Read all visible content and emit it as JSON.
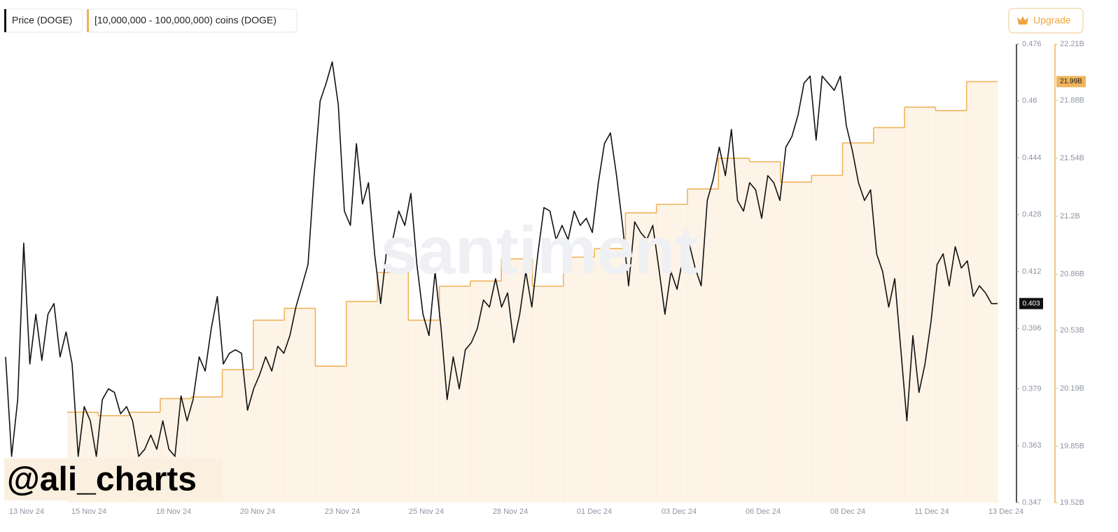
{
  "chart_data": {
    "type": "line",
    "series": [
      {
        "name": "Price (DOGE)",
        "color": "#111111",
        "current": 0.403,
        "values": [
          0.388,
          0.36,
          0.376,
          0.42,
          0.386,
          0.4,
          0.387,
          0.4,
          0.403,
          0.388,
          0.395,
          0.386,
          0.36,
          0.374,
          0.37,
          0.36,
          0.376,
          0.379,
          0.378,
          0.372,
          0.374,
          0.37,
          0.36,
          0.362,
          0.366,
          0.362,
          0.37,
          0.362,
          0.36,
          0.377,
          0.37,
          0.376,
          0.388,
          0.384,
          0.396,
          0.405,
          0.386,
          0.389,
          0.39,
          0.389,
          0.373,
          0.379,
          0.383,
          0.388,
          0.384,
          0.391,
          0.389,
          0.394,
          0.402,
          0.408,
          0.414,
          0.439,
          0.46,
          0.465,
          0.471,
          0.459,
          0.429,
          0.425,
          0.448,
          0.431,
          0.437,
          0.417,
          0.403,
          0.418,
          0.421,
          0.429,
          0.425,
          0.434,
          0.414,
          0.4,
          0.394,
          0.412,
          0.396,
          0.376,
          0.388,
          0.379,
          0.39,
          0.392,
          0.396,
          0.404,
          0.402,
          0.41,
          0.402,
          0.406,
          0.392,
          0.4,
          0.412,
          0.402,
          0.417,
          0.43,
          0.429,
          0.421,
          0.425,
          0.421,
          0.429,
          0.425,
          0.427,
          0.423,
          0.437,
          0.448,
          0.451,
          0.439,
          0.425,
          0.408,
          0.426,
          0.423,
          0.421,
          0.425,
          0.413,
          0.4,
          0.412,
          0.407,
          0.416,
          0.42,
          0.413,
          0.408,
          0.432,
          0.438,
          0.447,
          0.439,
          0.452,
          0.432,
          0.429,
          0.437,
          0.435,
          0.427,
          0.439,
          0.437,
          0.432,
          0.447,
          0.45,
          0.456,
          0.465,
          0.467,
          0.449,
          0.467,
          0.465,
          0.463,
          0.467,
          0.453,
          0.446,
          0.437,
          0.432,
          0.435,
          0.417,
          0.412,
          0.402,
          0.41,
          0.39,
          0.37,
          0.394,
          0.378,
          0.386,
          0.398,
          0.414,
          0.417,
          0.408,
          0.419,
          0.413,
          0.415,
          0.405,
          0.408,
          0.406,
          0.403,
          0.403
        ]
      },
      {
        "name": "[10,000,000 - 100,000,000) coins (DOGE)",
        "color": "#f0b35b",
        "axis": "y2",
        "step": true,
        "current": {
          "value": 21990000000,
          "label": "21.99B"
        },
        "values": [
          20050000000,
          20030000000,
          20050000000,
          20130000000,
          20140000000,
          20300000000,
          20590000000,
          20660000000,
          20320000000,
          20700000000,
          20870000000,
          20590000000,
          20790000000,
          20820000000,
          20950000000,
          20790000000,
          20960000000,
          21010000000,
          21220000000,
          21270000000,
          21360000000,
          21540000000,
          21520000000,
          21400000000,
          21440000000,
          21630000000,
          21720000000,
          21840000000,
          21820000000,
          21990000000
        ]
      }
    ],
    "xticklabels": [
      "13 Nov 24",
      "15 Nov 24",
      "18 Nov 24",
      "20 Nov 24",
      "23 Nov 24",
      "25 Nov 24",
      "28 Nov 24",
      "01 Dec 24",
      "03 Dec 24",
      "06 Dec 24",
      "08 Dec 24",
      "11 Dec 24",
      "13 Dec 24"
    ],
    "ylim": [
      0.347,
      0.476
    ],
    "yticks": [
      0.347,
      0.363,
      0.379,
      0.396,
      0.412,
      0.428,
      0.444,
      0.46,
      0.476
    ],
    "y2lim": [
      19520000000,
      22210000000
    ],
    "y2ticks": [
      {
        "value": 19520000000,
        "label": "19.52B"
      },
      {
        "value": 19850000000,
        "label": "19.85B"
      },
      {
        "value": 20190000000,
        "label": "20.19B"
      },
      {
        "value": 20530000000,
        "label": "20.53B"
      },
      {
        "value": 20860000000,
        "label": "20.86B"
      },
      {
        "value": 21200000000,
        "label": "21.2B"
      },
      {
        "value": 21540000000,
        "label": "21.54B"
      },
      {
        "value": 21880000000,
        "label": "21.88B"
      },
      {
        "value": 22210000000,
        "label": "22.21B"
      }
    ],
    "grid": false
  },
  "overlay": {
    "handle": "@ali_charts",
    "brand": "santiment"
  },
  "toolbar": {
    "upgrade": "Upgrade"
  }
}
